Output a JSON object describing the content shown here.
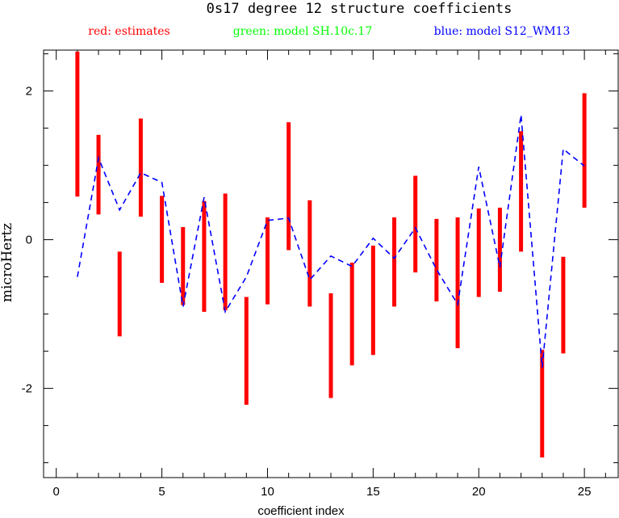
{
  "chart_data": {
    "type": "line",
    "title": "0s17 degree 12 structure coefficients",
    "xlabel": "coefficient index",
    "ylabel": "microHertz",
    "xlim": [
      -0.6,
      26.6
    ],
    "ylim": [
      -3.2,
      2.55
    ],
    "x_ticks": [
      0,
      5,
      10,
      15,
      20,
      25
    ],
    "y_ticks": [
      -2,
      0,
      2
    ],
    "x_tick_labels": [
      "0",
      "5",
      "10",
      "15",
      "20",
      "25"
    ],
    "y_tick_labels": [
      "-2",
      "0",
      "2"
    ],
    "grid": false,
    "legend_position": "top",
    "legend": [
      {
        "text": "red: estimates",
        "color": "#ff0000"
      },
      {
        "text": "green: model SH.10c.17",
        "color": "#00ff00"
      },
      {
        "text": "blue: model S12_WM13",
        "color": "#0000ff"
      }
    ],
    "series": [
      {
        "kind": "errorbar",
        "color": "#ff0000",
        "x": [
          1,
          2,
          3,
          4,
          5,
          6,
          7,
          8,
          9,
          10,
          11,
          12,
          13,
          14,
          15,
          16,
          17,
          18,
          19,
          20,
          21,
          22,
          23,
          24,
          25
        ],
        "low": [
          0.58,
          0.34,
          -1.3,
          0.31,
          -0.58,
          -0.88,
          -0.97,
          -0.95,
          -2.22,
          -0.87,
          -0.14,
          -0.9,
          -2.13,
          -1.69,
          -1.55,
          -0.9,
          -0.44,
          -0.83,
          -1.46,
          -0.77,
          -0.7,
          -0.16,
          -2.93,
          -1.53,
          0.43
        ],
        "high": [
          2.53,
          1.41,
          -0.16,
          1.63,
          0.59,
          0.17,
          0.52,
          0.62,
          -0.77,
          0.3,
          1.58,
          0.53,
          -0.72,
          -0.31,
          -0.08,
          0.3,
          0.86,
          0.28,
          0.3,
          0.42,
          0.43,
          1.46,
          -1.48,
          -0.23,
          1.97
        ]
      },
      {
        "kind": "line",
        "color": "#0000ff",
        "dashed": true,
        "x": [
          1,
          2,
          3,
          4,
          5,
          6,
          7,
          8,
          9,
          10,
          11,
          12,
          13,
          14,
          15,
          16,
          17,
          18,
          19,
          20,
          21,
          22,
          23,
          24,
          25
        ],
        "y": [
          -0.5,
          1.1,
          0.4,
          0.9,
          0.77,
          -0.9,
          0.57,
          -0.97,
          -0.5,
          0.26,
          0.29,
          -0.54,
          -0.22,
          -0.36,
          0.02,
          -0.25,
          0.16,
          -0.4,
          -0.87,
          0.98,
          -0.37,
          1.68,
          -1.72,
          1.22,
          0.99
        ]
      }
    ]
  }
}
